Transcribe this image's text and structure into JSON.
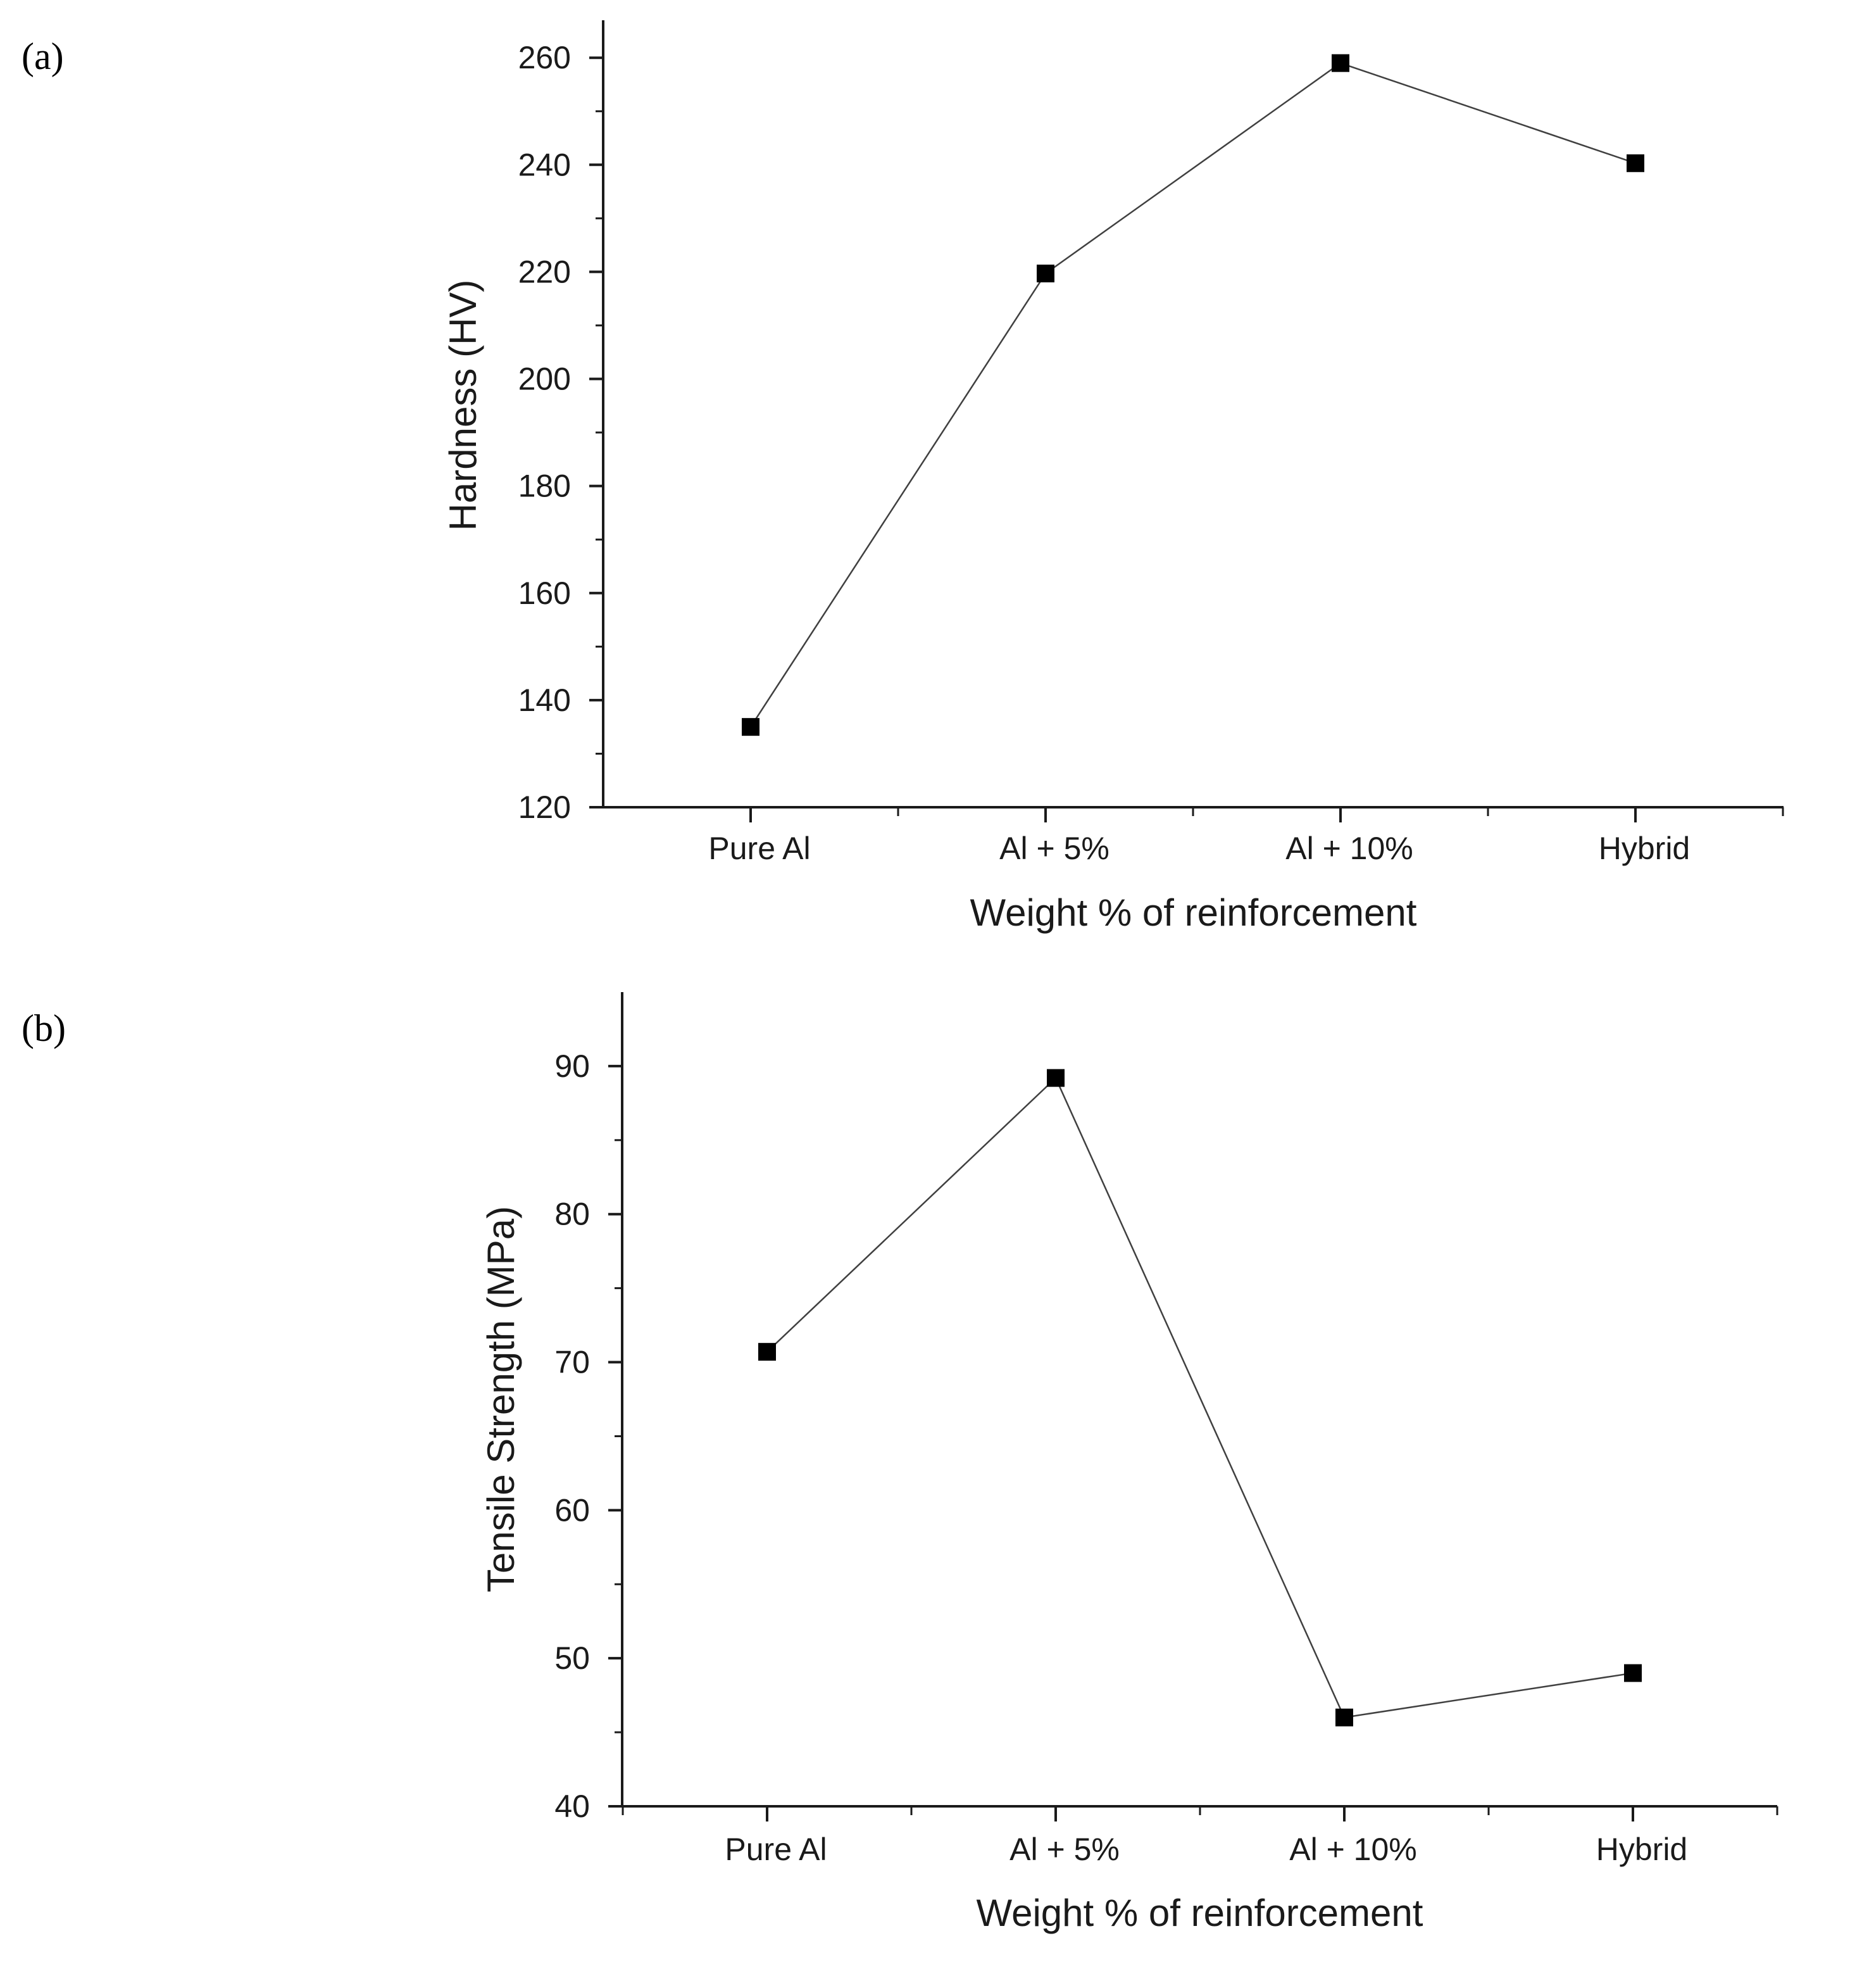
{
  "panels": [
    {
      "label": "(a)"
    },
    {
      "label": "(b)"
    }
  ],
  "colors": {
    "axis": "#1a1a1a",
    "line": "#404040",
    "marker": "#000000"
  },
  "chart_data": [
    {
      "type": "line",
      "title": "",
      "categories": [
        "Pure Al",
        "Al + 5%",
        "Al + 10%",
        "Hybrid"
      ],
      "series": [
        {
          "name": "Hardness",
          "values": [
            135,
            219.7,
            259,
            240.3
          ]
        }
      ],
      "xlabel": "Weight % of reinforcement",
      "ylabel": "Hardness (HV)",
      "ylim": [
        120,
        267
      ],
      "yticks": [
        120,
        140,
        160,
        180,
        200,
        220,
        240,
        260
      ],
      "marker": "square",
      "grid": false
    },
    {
      "type": "line",
      "title": "",
      "categories": [
        "Pure Al",
        "Al + 5%",
        "Al + 10%",
        "Hybrid"
      ],
      "series": [
        {
          "name": "Tensile Strength",
          "values": [
            70.7,
            89.2,
            46.0,
            49.0
          ]
        }
      ],
      "xlabel": "Weight % of reinforcement",
      "ylabel": "Tensile Strength (MPa)",
      "ylim": [
        40,
        95
      ],
      "yticks": [
        40,
        50,
        60,
        70,
        80,
        90
      ],
      "marker": "square",
      "grid": false
    }
  ]
}
